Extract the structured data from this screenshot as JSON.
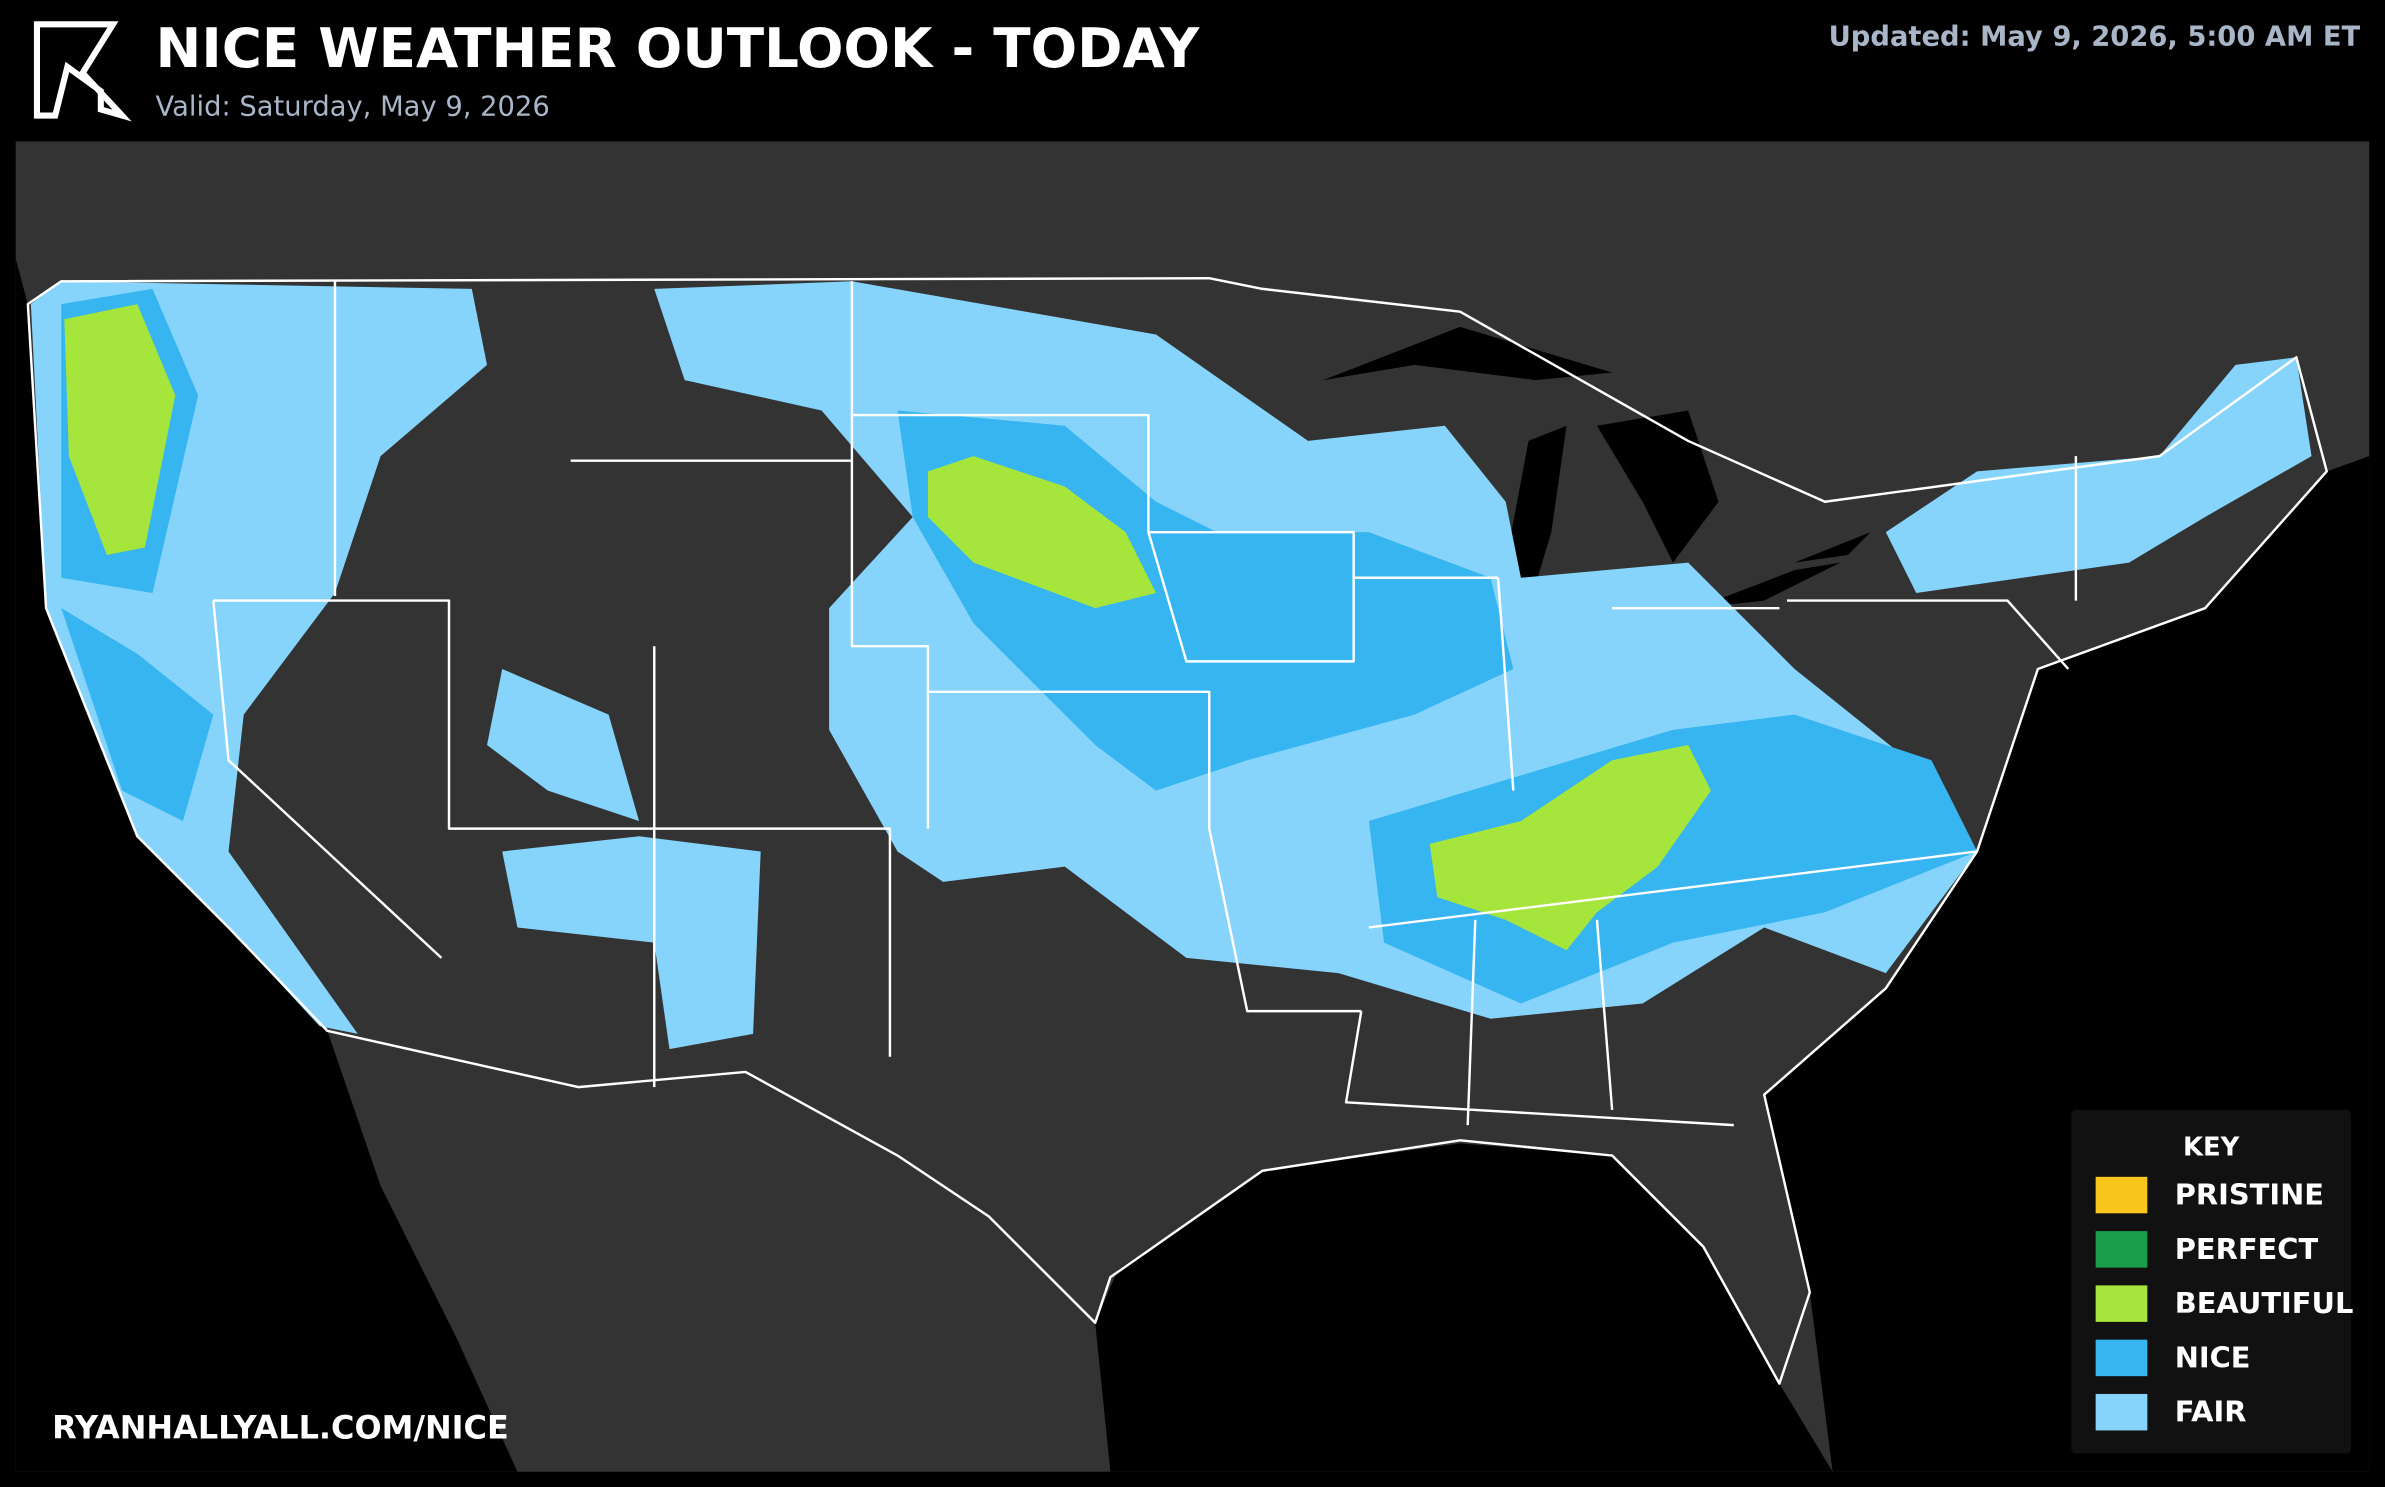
{
  "header": {
    "title": "NICE WEATHER OUTLOOK - TODAY",
    "valid": "Valid: Saturday, May 9, 2026",
    "updated": "Updated: May 9, 2026, 5:00 AM ET"
  },
  "footer": {
    "url": "RYANHALLYALL.COM/NICE"
  },
  "legend": {
    "title": "KEY",
    "items": [
      {
        "label": "PRISTINE",
        "color": "#f7c51c"
      },
      {
        "label": "PERFECT",
        "color": "#1b9e4b"
      },
      {
        "label": "BEAUTIFUL",
        "color": "#a6e53c"
      },
      {
        "label": "NICE",
        "color": "#36b5f1"
      },
      {
        "label": "FAIR",
        "color": "#86d4fb"
      }
    ]
  }
}
